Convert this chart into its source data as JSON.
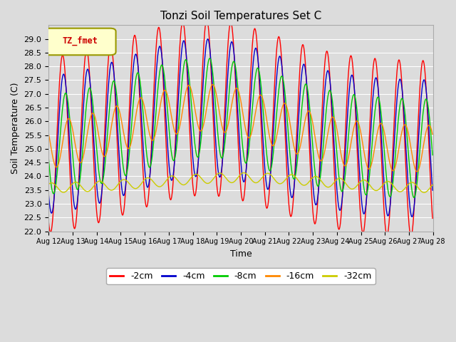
{
  "title": "Tonzi Soil Temperatures Set C",
  "xlabel": "Time",
  "ylabel": "Soil Temperature (C)",
  "ylim": [
    22.0,
    29.5
  ],
  "yticks": [
    22.0,
    22.5,
    23.0,
    23.5,
    24.0,
    24.5,
    25.0,
    25.5,
    26.0,
    26.5,
    27.0,
    27.5,
    28.0,
    28.5,
    29.0
  ],
  "legend_label": "TZ_fmet",
  "series_labels": [
    "-2cm",
    "-4cm",
    "-8cm",
    "-16cm",
    "-32cm"
  ],
  "series_colors": [
    "#ff0000",
    "#0000cc",
    "#00cc00",
    "#ff8800",
    "#cccc00"
  ],
  "bg_color": "#dcdcdc",
  "plot_bg_color": "#dcdcdc",
  "grid_color": "#ffffff",
  "n_days": 16,
  "samples_per_day": 48,
  "legend_box_color": "#ffffcc",
  "legend_box_border": "#999900",
  "legend_text_color": "#cc0000",
  "figsize": [
    6.4,
    4.8
  ],
  "dpi": 100
}
